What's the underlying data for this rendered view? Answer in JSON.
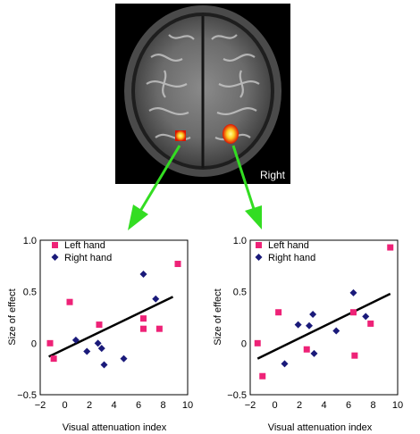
{
  "brain_image": {
    "side_label": "Right",
    "colors": {
      "activation_core": "#ffff66",
      "activation_edge": "#dd1100",
      "arrow": "#33dd22"
    }
  },
  "chart_data": [
    {
      "type": "scatter",
      "title": "",
      "xlabel": "Visual attenuation index",
      "ylabel": "Size of effect",
      "xlim": [
        -2,
        10
      ],
      "ylim": [
        -0.5,
        1.0
      ],
      "xticks": [
        "−2",
        "0",
        "2",
        "4",
        "6",
        "8",
        "10"
      ],
      "yticks": [
        "−0.5",
        "0",
        "0.5",
        "1.0"
      ],
      "legend_position": "top-left",
      "series": [
        {
          "name": "Left hand",
          "marker": "square",
          "color": "#ee2277",
          "points": [
            [
              -1.2,
              0.0
            ],
            [
              -0.9,
              -0.15
            ],
            [
              0.4,
              0.4
            ],
            [
              2.8,
              0.18
            ],
            [
              6.4,
              0.24
            ],
            [
              6.4,
              0.14
            ],
            [
              7.7,
              0.14
            ],
            [
              9.2,
              0.77
            ]
          ]
        },
        {
          "name": "Right hand",
          "marker": "diamond",
          "color": "#1a1a7a",
          "points": [
            [
              0.9,
              0.03
            ],
            [
              1.8,
              -0.08
            ],
            [
              2.7,
              0.0
            ],
            [
              3.0,
              -0.05
            ],
            [
              3.2,
              -0.21
            ],
            [
              4.8,
              -0.15
            ],
            [
              6.4,
              0.67
            ],
            [
              7.4,
              0.43
            ]
          ]
        }
      ],
      "trendline": {
        "color": "#000000",
        "from": [
          -1.3,
          -0.13
        ],
        "to": [
          8.8,
          0.45
        ]
      }
    },
    {
      "type": "scatter",
      "title": "",
      "xlabel": "Visual attenuation index",
      "ylabel": "Size of effect",
      "xlim": [
        -2,
        10
      ],
      "ylim": [
        -0.5,
        1.0
      ],
      "xticks": [
        "−2",
        "0",
        "2",
        "4",
        "6",
        "8",
        "10"
      ],
      "yticks": [
        "−0.5",
        "0",
        "0.5",
        "1.0"
      ],
      "legend_position": "top-left",
      "series": [
        {
          "name": "Left hand",
          "marker": "square",
          "color": "#ee2277",
          "points": [
            [
              -1.4,
              0.0
            ],
            [
              -1.0,
              -0.32
            ],
            [
              0.3,
              0.3
            ],
            [
              2.6,
              -0.06
            ],
            [
              6.4,
              0.3
            ],
            [
              6.5,
              -0.12
            ],
            [
              7.8,
              0.19
            ],
            [
              9.4,
              0.93
            ]
          ]
        },
        {
          "name": "Right hand",
          "marker": "diamond",
          "color": "#1a1a7a",
          "points": [
            [
              0.8,
              -0.2
            ],
            [
              1.9,
              0.18
            ],
            [
              2.8,
              0.17
            ],
            [
              3.1,
              0.28
            ],
            [
              3.2,
              -0.1
            ],
            [
              5.0,
              0.12
            ],
            [
              6.4,
              0.49
            ],
            [
              7.4,
              0.26
            ]
          ]
        }
      ],
      "trendline": {
        "color": "#000000",
        "from": [
          -1.4,
          -0.15
        ],
        "to": [
          9.4,
          0.48
        ]
      }
    }
  ]
}
